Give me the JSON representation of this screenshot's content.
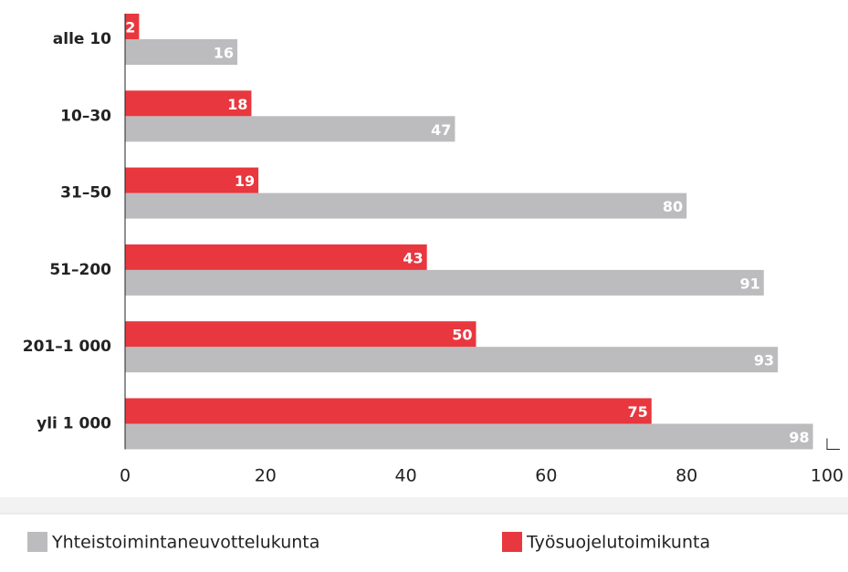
{
  "chart_data": {
    "type": "barh",
    "categories": [
      "alle 10",
      "10–30",
      "31–50",
      "51–200",
      "201–1 000",
      "yli 1 000"
    ],
    "series": [
      {
        "name": "Yhteistoimintaneuvottelukunta",
        "color": "#bcbcbe",
        "values": [
          16,
          47,
          80,
          91,
          93,
          98
        ]
      },
      {
        "name": "Työsuojelutoimikunta",
        "color": "#e8373e",
        "values": [
          2,
          18,
          19,
          43,
          50,
          75
        ]
      }
    ],
    "xlim": [
      0,
      100
    ],
    "xticks": [
      0,
      20,
      40,
      60,
      80,
      100
    ],
    "legend": "bottom"
  }
}
